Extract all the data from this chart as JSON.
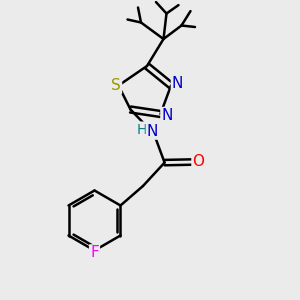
{
  "background_color": "#ebebeb",
  "bond_color": "#000000",
  "bond_width": 1.8,
  "atom_colors": {
    "N": "#0000cc",
    "S": "#999900",
    "O": "#ff0000",
    "F": "#ff00ff",
    "H": "#008080",
    "C": "#000000"
  },
  "font_size": 10,
  "fig_size": [
    3.0,
    3.0
  ],
  "dpi": 100,
  "xlim": [
    0,
    10
  ],
  "ylim": [
    0,
    10
  ]
}
